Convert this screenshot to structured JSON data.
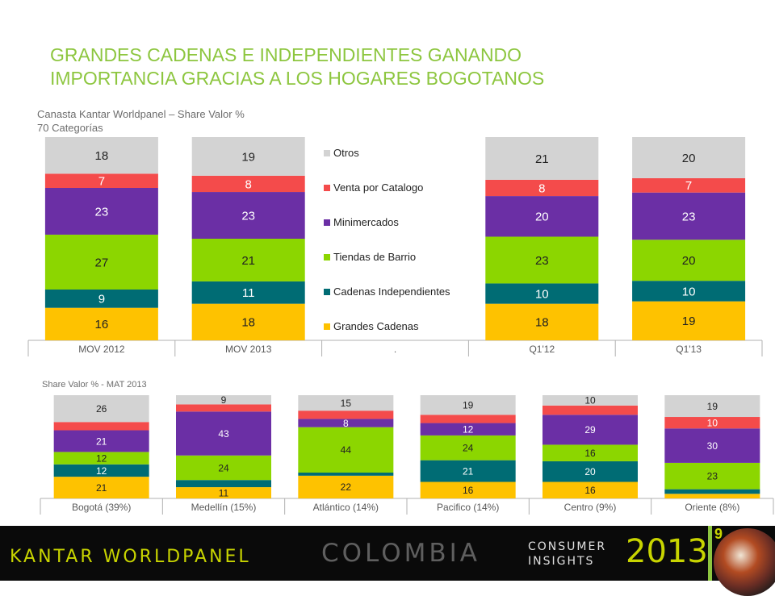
{
  "title": {
    "line1": "GRANDES CADENAS E INDEPENDIENTES GANANDO",
    "line2": "IMPORTANCIA GRACIAS A LOS HOGARES BOGOTANOS"
  },
  "top_subtitle": {
    "line1": "Canasta Kantar Worldpanel – Share Valor %",
    "line2": "70 Categorías"
  },
  "bottom_subtitle": "Share Valor % - MAT 2013",
  "colors": {
    "Grandes Cadenas": "#fec200",
    "Cadenas Independientes": "#006c74",
    "Tiendas de Barrio": "#8cd600",
    "Minimercados": "#6b2fa5",
    "Venta por Catalogo": "#f44b4b",
    "Otros": "#d3d3d3"
  },
  "chart_data": [
    {
      "type": "bar",
      "stacked": true,
      "categories": [
        "MOV 2012",
        "MOV 2013",
        ".",
        "Q1'12",
        "Q1'13"
      ],
      "legend": [
        "Otros",
        "Venta por Catalogo",
        "Minimercados",
        "Tiendas de Barrio",
        "Cadenas Independientes",
        "Grandes Cadenas"
      ],
      "legend_position": "inside-middle",
      "ylim": [
        0,
        100
      ],
      "series": [
        {
          "name": "Grandes Cadenas",
          "values": [
            16,
            18,
            null,
            18,
            19
          ]
        },
        {
          "name": "Cadenas Independientes",
          "values": [
            9,
            11,
            null,
            10,
            10
          ]
        },
        {
          "name": "Tiendas de Barrio",
          "values": [
            27,
            21,
            null,
            23,
            20
          ]
        },
        {
          "name": "Minimercados",
          "values": [
            23,
            23,
            null,
            20,
            23
          ]
        },
        {
          "name": "Venta por Catalogo",
          "values": [
            7,
            8,
            null,
            8,
            7
          ]
        },
        {
          "name": "Otros",
          "values": [
            18,
            19,
            null,
            21,
            20
          ]
        }
      ]
    },
    {
      "type": "bar",
      "stacked": true,
      "categories": [
        "Bogotá (39%)",
        "Medellín (15%)",
        "Atlántico (14%)",
        "Pacifico (14%)",
        "Centro (9%)",
        "Oriente (8%)"
      ],
      "ylim": [
        0,
        100
      ],
      "series": [
        {
          "name": "Grandes Cadenas",
          "values": [
            21,
            11,
            22,
            16,
            16,
            4
          ],
          "labels": [
            "21",
            "11",
            "22",
            "16",
            "16",
            ""
          ]
        },
        {
          "name": "Cadenas Independientes",
          "values": [
            12,
            7,
            3,
            21,
            20,
            4
          ],
          "labels": [
            "12",
            "",
            "",
            "21",
            "20",
            ""
          ]
        },
        {
          "name": "Tiendas de Barrio",
          "values": [
            12,
            24,
            44,
            24,
            16,
            23
          ],
          "labels": [
            "12",
            "24",
            "44",
            "24",
            "16",
            "23"
          ]
        },
        {
          "name": "Minimercados",
          "values": [
            21,
            43,
            8,
            12,
            29,
            30
          ],
          "labels": [
            "21",
            "43",
            "8",
            "12",
            "29",
            "30"
          ]
        },
        {
          "name": "Venta por Catalogo",
          "values": [
            8,
            7,
            8,
            8,
            9,
            10
          ],
          "labels": [
            "",
            "",
            "",
            "",
            "",
            "10"
          ]
        },
        {
          "name": "Otros",
          "values": [
            26,
            9,
            15,
            19,
            10,
            19
          ],
          "labels": [
            "26",
            "9",
            "15",
            "19",
            "10",
            "19"
          ]
        }
      ]
    }
  ],
  "footer": {
    "brand": "KANTAR WORLDPANEL",
    "country": "COLOMBIA",
    "consumer": "CONSUMER",
    "insights": "INSIGHTS",
    "year": "2013",
    "page_number": "9"
  }
}
